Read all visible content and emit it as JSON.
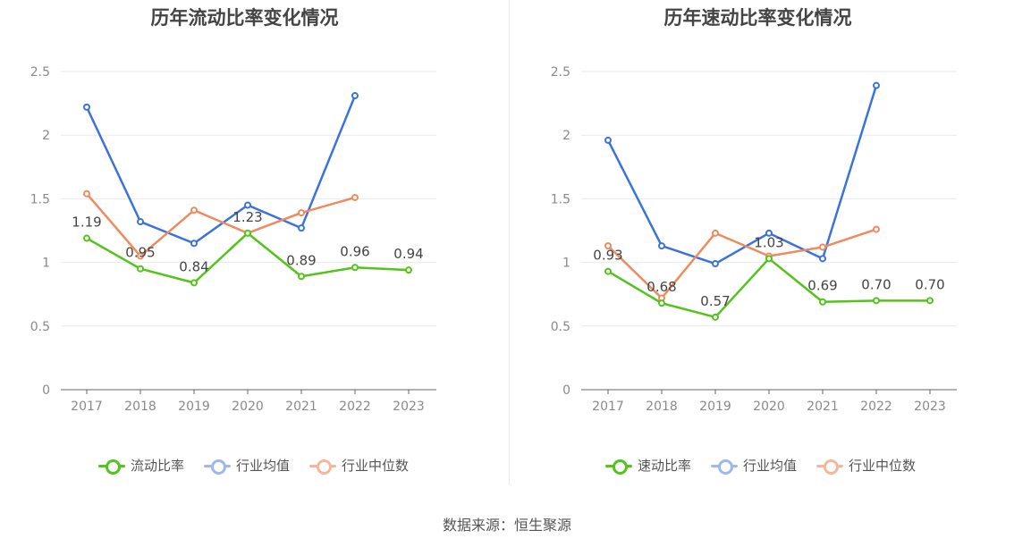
{
  "colors": {
    "company": "#52c41a",
    "average": "#3b72e0",
    "median": "#f08a5d",
    "axis": "#666666",
    "grid": "#e8eaf0",
    "tick": "#8a8a8a"
  },
  "chart_data": [
    {
      "type": "line",
      "title": "历年流动比率变化情况",
      "categories": [
        "2017",
        "2018",
        "2019",
        "2020",
        "2021",
        "2022",
        "2023"
      ],
      "ylim": [
        0,
        2.5
      ],
      "yticks": [
        "0",
        "0.5",
        "1",
        "1.5",
        "2",
        "2.5"
      ],
      "series": [
        {
          "name": "流动比率",
          "key": "company",
          "values": [
            1.19,
            0.95,
            0.84,
            1.23,
            0.89,
            0.96,
            0.94
          ],
          "labels": [
            "1.19",
            "0.95",
            "0.84",
            "1.23",
            "0.89",
            "0.96",
            "0.94"
          ]
        },
        {
          "name": "行业均值",
          "key": "average",
          "values": [
            2.22,
            1.32,
            1.15,
            1.45,
            1.27,
            2.31,
            null
          ]
        },
        {
          "name": "行业中位数",
          "key": "median",
          "values": [
            1.54,
            1.05,
            1.41,
            1.23,
            1.39,
            1.51,
            null
          ]
        }
      ]
    },
    {
      "type": "line",
      "title": "历年速动比率变化情况",
      "categories": [
        "2017",
        "2018",
        "2019",
        "2020",
        "2021",
        "2022",
        "2023"
      ],
      "ylim": [
        0,
        2.5
      ],
      "yticks": [
        "0",
        "0.5",
        "1",
        "1.5",
        "2",
        "2.5"
      ],
      "series": [
        {
          "name": "速动比率",
          "key": "company",
          "values": [
            0.93,
            0.68,
            0.57,
            1.03,
            0.69,
            0.7,
            0.7
          ],
          "labels": [
            "0.93",
            "0.68",
            "0.57",
            "1.03",
            "0.69",
            "0.70",
            "0.70"
          ]
        },
        {
          "name": "行业均值",
          "key": "average",
          "values": [
            1.96,
            1.13,
            0.99,
            1.23,
            1.03,
            2.39,
            null
          ]
        },
        {
          "name": "行业中位数",
          "key": "median",
          "values": [
            1.13,
            0.72,
            1.23,
            1.05,
            1.12,
            1.26,
            null
          ]
        }
      ]
    }
  ],
  "source": "数据来源：恒生聚源"
}
